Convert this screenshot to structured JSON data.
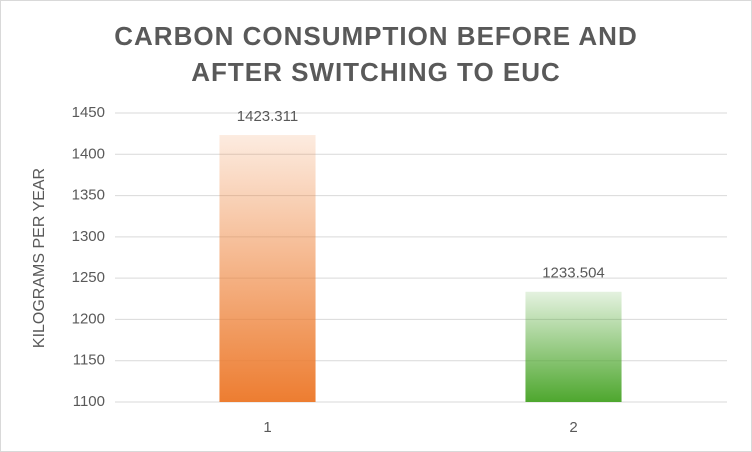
{
  "chart_data": {
    "type": "bar",
    "title": "CARBON CONSUMPTION BEFORE AND AFTER SWITCHING TO EUC",
    "y_label": "KILOGRAMS PER YEAR",
    "categories": [
      "1",
      "2"
    ],
    "values": [
      1423.311,
      1233.504
    ],
    "colors": [
      "#ed7d31",
      "#4ea72e"
    ],
    "ylim": [
      1100,
      1450
    ],
    "yticks": [
      1100,
      1150,
      1200,
      1250,
      1300,
      1350,
      1400,
      1450
    ],
    "grid": true
  }
}
